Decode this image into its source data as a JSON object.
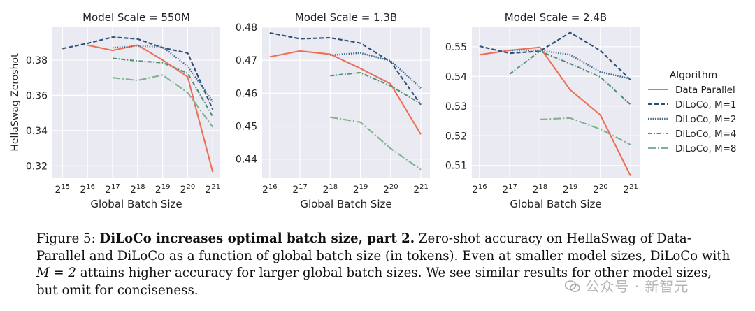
{
  "chart_data": [
    {
      "type": "line",
      "title": "Model Scale = 550M",
      "xlabel": "Global Batch Size",
      "ylabel": "HellaSwag Zeroshot",
      "x_exponents": [
        15,
        16,
        17,
        18,
        19,
        20,
        21
      ],
      "x_tick_labels": [
        "2^15",
        "2^16",
        "2^17",
        "2^18",
        "2^19",
        "2^20",
        "2^21"
      ],
      "ylim": [
        0.313,
        0.399
      ],
      "yticks": [
        0.32,
        0.34,
        0.36,
        0.38
      ],
      "y_tick_labels": [
        "0.32",
        "0.34",
        "0.36",
        "0.38"
      ],
      "grid": true,
      "series": [
        {
          "name": "Data Parallel",
          "x": [
            16,
            17,
            18,
            19,
            20,
            21
          ],
          "values": [
            0.3885,
            0.3855,
            0.3885,
            0.38,
            0.3705,
            0.3165
          ]
        },
        {
          "name": "DiLoCo, M=1",
          "x": [
            15,
            16,
            17,
            18,
            19,
            20,
            21
          ],
          "values": [
            0.3865,
            0.3895,
            0.393,
            0.392,
            0.387,
            0.384,
            0.352
          ]
        },
        {
          "name": "DiLoCo, M=2",
          "x": [
            17,
            18,
            19,
            20,
            21
          ],
          "values": [
            0.387,
            0.388,
            0.3875,
            0.3765,
            0.3565
          ]
        },
        {
          "name": "DiLoCo, M=4",
          "x": [
            17,
            18,
            19,
            20,
            21
          ],
          "values": [
            0.381,
            0.3795,
            0.3785,
            0.3725,
            0.348
          ]
        },
        {
          "name": "DiLoCo, M=8",
          "x": [
            17,
            18,
            19,
            20,
            21
          ],
          "values": [
            0.37,
            0.3685,
            0.3715,
            0.3615,
            0.342
          ]
        }
      ]
    },
    {
      "type": "line",
      "title": "Model Scale = 1.3B",
      "xlabel": "Global Batch Size",
      "ylabel": "",
      "x_exponents": [
        16,
        17,
        18,
        19,
        20,
        21
      ],
      "x_tick_labels": [
        "2^16",
        "2^17",
        "2^18",
        "2^19",
        "2^20",
        "2^21"
      ],
      "ylim": [
        0.4342,
        0.4802
      ],
      "yticks": [
        0.44,
        0.45,
        0.46,
        0.47,
        0.48
      ],
      "y_tick_labels": [
        "0.44",
        "0.45",
        "0.46",
        "0.47",
        "0.48"
      ],
      "grid": true,
      "series": [
        {
          "name": "Data Parallel",
          "x": [
            16,
            17,
            18,
            19,
            20,
            21
          ],
          "values": [
            0.471,
            0.4728,
            0.4718,
            0.4675,
            0.4628,
            0.4475
          ]
        },
        {
          "name": "DiLoCo, M=1",
          "x": [
            16,
            17,
            18,
            19,
            20,
            21
          ],
          "values": [
            0.4783,
            0.4765,
            0.4768,
            0.4752,
            0.4695,
            0.4565
          ]
        },
        {
          "name": "DiLoCo, M=2",
          "x": [
            18,
            19,
            20,
            21
          ],
          "values": [
            0.4715,
            0.4722,
            0.4698,
            0.4615
          ]
        },
        {
          "name": "DiLoCo, M=4",
          "x": [
            18,
            19,
            20,
            21
          ],
          "values": [
            0.4653,
            0.4662,
            0.4622,
            0.4568
          ]
        },
        {
          "name": "DiLoCo, M=8",
          "x": [
            18,
            19,
            20,
            21
          ],
          "values": [
            0.4527,
            0.4512,
            0.4432,
            0.4368
          ]
        }
      ]
    },
    {
      "type": "line",
      "title": "Model Scale = 2.4B",
      "xlabel": "Global Batch Size",
      "ylabel": "",
      "x_exponents": [
        16,
        17,
        18,
        19,
        20,
        21
      ],
      "x_tick_labels": [
        "2^16",
        "2^17",
        "2^18",
        "2^19",
        "2^20",
        "2^21"
      ],
      "ylim": [
        0.5057,
        0.5568
      ],
      "yticks": [
        0.51,
        0.52,
        0.53,
        0.54,
        0.55
      ],
      "y_tick_labels": [
        "0.51",
        "0.52",
        "0.53",
        "0.54",
        "0.55"
      ],
      "grid": true,
      "series": [
        {
          "name": "Data Parallel",
          "x": [
            16,
            17,
            18,
            19,
            20,
            21
          ],
          "values": [
            0.5473,
            0.5488,
            0.5498,
            0.5355,
            0.527,
            0.5065
          ]
        },
        {
          "name": "DiLoCo, M=1",
          "x": [
            16,
            17,
            18,
            19,
            20,
            21
          ],
          "values": [
            0.5502,
            0.5478,
            0.5485,
            0.5548,
            0.5487,
            0.5388
          ]
        },
        {
          "name": "DiLoCo, M=2",
          "x": [
            17,
            18,
            19,
            20,
            21
          ],
          "values": [
            0.5488,
            0.5488,
            0.5473,
            0.5415,
            0.5392
          ]
        },
        {
          "name": "DiLoCo, M=4",
          "x": [
            17,
            18,
            19,
            20,
            21
          ],
          "values": [
            0.5408,
            0.5485,
            0.5443,
            0.5398,
            0.5305
          ]
        },
        {
          "name": "DiLoCo, M=8",
          "x": [
            18,
            19,
            20,
            21
          ],
          "values": [
            0.5255,
            0.526,
            0.5222,
            0.517
          ]
        }
      ]
    }
  ],
  "legend": {
    "title": "Algorithm",
    "placement": "right",
    "entries": [
      {
        "label": "Data Parallel",
        "color": "#ee6f57",
        "style": "solid"
      },
      {
        "label": "DiLoCo, M=1",
        "color": "#2f4f7a",
        "style": "dashed"
      },
      {
        "label": "DiLoCo, M=2",
        "color": "#3e6d8e",
        "style": "dotted"
      },
      {
        "label": "DiLoCo, M=4",
        "color": "#4f8f77",
        "style": "dashdot"
      },
      {
        "label": "DiLoCo, M=8",
        "color": "#7fb28f",
        "style": "dashdot-long"
      }
    ]
  },
  "caption": {
    "label": "Figure 5:",
    "bold_title": "DiLoCo increases optimal batch size, part 2.",
    "text_1": "Zero-shot accuracy on HellaSwag of Data-Parallel and DiLoCo as a function of global batch size (in tokens). Even at smaller model sizes, DiLoCo with",
    "math": "M = 2",
    "text_2": "attains higher accuracy for larger global batch sizes. We see similar results for other model sizes, but omit for conciseness."
  },
  "watermark": "公众号 · 新智元"
}
